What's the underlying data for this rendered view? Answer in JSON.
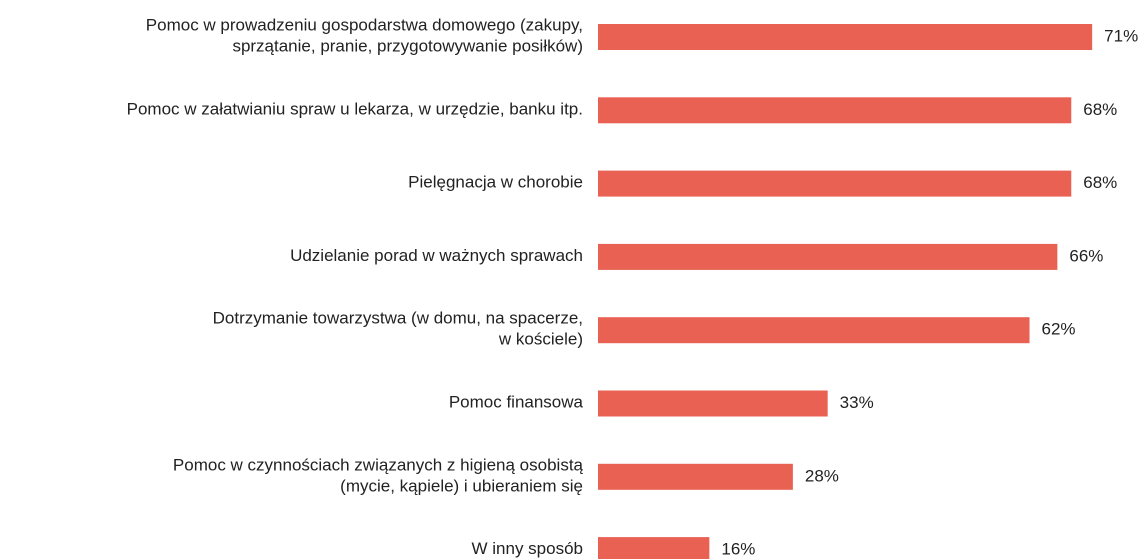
{
  "chart_data": {
    "type": "bar",
    "orientation": "horizontal",
    "categories": [
      "Pomoc w prowadzeniu gospodarstwa domowego (zakupy,\nsprzątanie, pranie, przygotowywanie posiłków)",
      "Pomoc w załatwianiu spraw u lekarza, w urzędzie, banku itp.",
      "Pielęgnacja w chorobie",
      "Udzielanie porad w ważnych sprawach",
      "Dotrzymanie towarzystwa (w domu, na spacerze,\nw kościele)",
      "Pomoc finansowa",
      "Pomoc w czynnościach związanych z higieną osobistą\n(mycie, kąpiele) i ubieraniem się",
      "W inny sposób"
    ],
    "values": [
      71,
      68,
      68,
      66,
      62,
      33,
      28,
      16
    ],
    "value_labels": [
      "71%",
      "68%",
      "68%",
      "66%",
      "62%",
      "33%",
      "28%",
      "16%"
    ],
    "color": "#e96153"
  }
}
